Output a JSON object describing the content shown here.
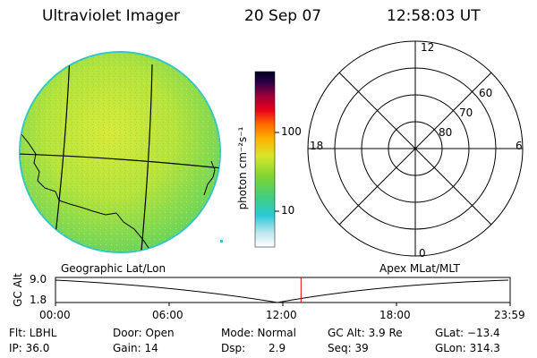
{
  "header": {
    "instrument": "Ultraviolet Imager",
    "date": "20 Sep 07",
    "time": "12:58:03 UT"
  },
  "colorbar": {
    "unit_label": "photon cm⁻²s⁻¹",
    "tick_100": "100",
    "tick_10": "10"
  },
  "polar": {
    "hour_top": "12",
    "hour_left": "18",
    "hour_right": "6",
    "hour_bottom": "0",
    "lat_60": "60",
    "lat_70": "70",
    "lat_80": "80"
  },
  "timeline": {
    "y_axis_label": "GC Alt",
    "y_max": "9.0",
    "y_min": "1.8",
    "left_caption": "Geographic Lat/Lon",
    "right_caption": "Apex MLat/MLT",
    "x_ticks": [
      "00:00",
      "06:00",
      "12:00",
      "18:00",
      "23:59"
    ],
    "current_time_fraction": 0.54
  },
  "info": {
    "flt": "Flt: LBHL",
    "ip": "IP: 36.0",
    "door": "Door: Open",
    "gain": "Gain: 14",
    "mode": "Mode: Normal",
    "dsp_label": "Dsp:",
    "dsp_value": "2.9",
    "gc_alt": "GC Alt: 3.9 Re",
    "seq": "Seq: 39",
    "glat": "GLat: −13.4",
    "glon": "GLon: 314.3"
  },
  "colors": {
    "earth_fill": "#a9e23a",
    "earth_rim": "#38c7c0",
    "red_marker": "#e00000"
  }
}
